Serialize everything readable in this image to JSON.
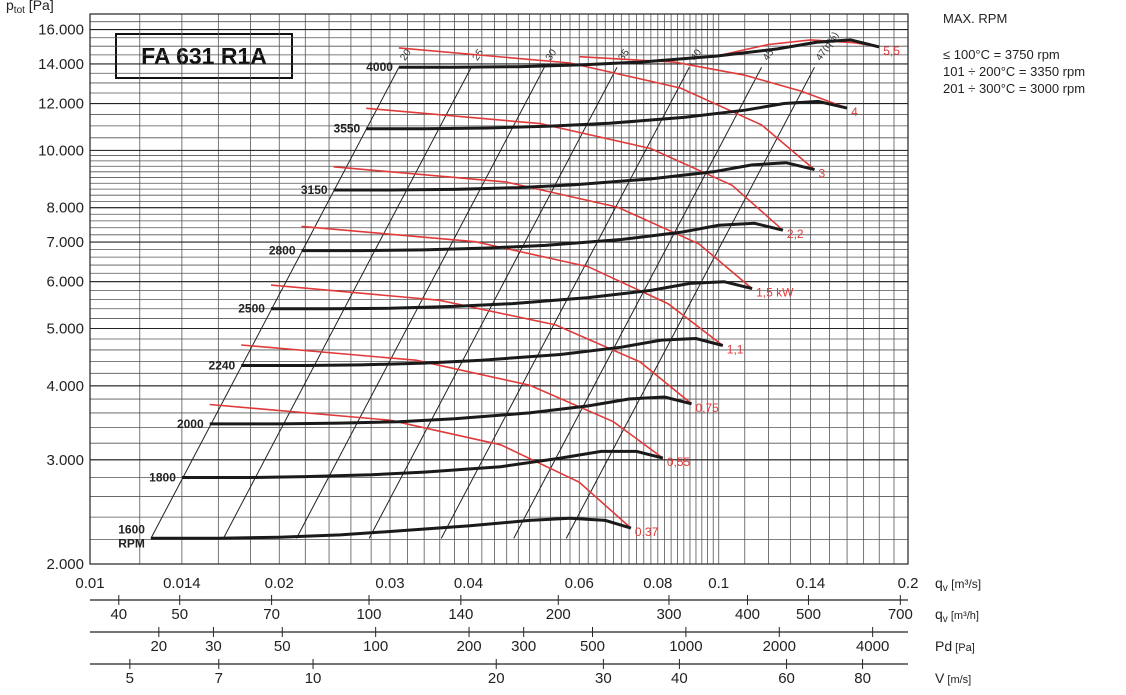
{
  "chart_data": {
    "type": "line",
    "title": "FA 631 R1A",
    "ylabel": "p",
    "ylabel_sub": "tot",
    "ylabel_unit": "[Pa]",
    "yscale": "log",
    "xscale": "log",
    "xlim": [
      0.01,
      0.2
    ],
    "ylim": [
      2000,
      17000
    ],
    "y_ticks": [
      2000,
      3000,
      4000,
      5000,
      6000,
      7000,
      8000,
      10000,
      12000,
      14000,
      16000
    ],
    "y_tick_labels": [
      "2.000",
      "3.000",
      "4.000",
      "5.000",
      "6.000",
      "7.000",
      "8.000",
      "10.000",
      "12.000",
      "14.000",
      "16.000"
    ],
    "x_ticks": [
      0.01,
      0.014,
      0.02,
      0.03,
      0.04,
      0.06,
      0.08,
      0.1,
      0.14,
      0.2
    ],
    "x_tick_labels": [
      "0.01",
      "0.014",
      "0.02",
      "0.03",
      "0.04",
      "0.06",
      "0.08",
      "0.1",
      "0.14",
      "0.2"
    ],
    "grid": true,
    "series": [
      {
        "name": "1600 RPM",
        "label": "1600",
        "label2": "RPM",
        "x": [
          0.0125,
          0.016,
          0.02,
          0.025,
          0.03,
          0.04,
          0.05,
          0.058,
          0.066,
          0.0725
        ],
        "y": [
          2210,
          2210,
          2220,
          2240,
          2270,
          2320,
          2370,
          2390,
          2370,
          2300
        ]
      },
      {
        "name": "1800",
        "label": "1800",
        "x": [
          0.014,
          0.018,
          0.022,
          0.028,
          0.034,
          0.045,
          0.056,
          0.065,
          0.074,
          0.0815
        ],
        "y": [
          2800,
          2800,
          2810,
          2830,
          2860,
          2920,
          3020,
          3100,
          3100,
          3020
        ]
      },
      {
        "name": "2000",
        "label": "2000",
        "x": [
          0.0155,
          0.02,
          0.025,
          0.031,
          0.038,
          0.05,
          0.062,
          0.072,
          0.082,
          0.0905
        ],
        "y": [
          3450,
          3450,
          3460,
          3480,
          3520,
          3600,
          3700,
          3800,
          3830,
          3730
        ]
      },
      {
        "name": "2240",
        "label": "2240",
        "x": [
          0.0174,
          0.022,
          0.027,
          0.034,
          0.042,
          0.056,
          0.07,
          0.081,
          0.092,
          0.1015
        ],
        "y": [
          4330,
          4330,
          4340,
          4370,
          4420,
          4520,
          4650,
          4780,
          4810,
          4680
        ]
      },
      {
        "name": "2500",
        "label": "2500",
        "x": [
          0.0194,
          0.024,
          0.03,
          0.038,
          0.047,
          0.062,
          0.078,
          0.09,
          0.102,
          0.113
        ],
        "y": [
          5400,
          5400,
          5410,
          5450,
          5510,
          5640,
          5800,
          5960,
          6000,
          5840
        ]
      },
      {
        "name": "2800",
        "label": "2800",
        "x": [
          0.0217,
          0.027,
          0.034,
          0.043,
          0.053,
          0.07,
          0.087,
          0.1,
          0.114,
          0.1265
        ],
        "y": [
          6770,
          6770,
          6790,
          6840,
          6910,
          7070,
          7270,
          7470,
          7530,
          7330
        ]
      },
      {
        "name": "3150",
        "label": "3150",
        "x": [
          0.0244,
          0.03,
          0.038,
          0.048,
          0.059,
          0.078,
          0.098,
          0.113,
          0.128,
          0.142
        ],
        "y": [
          8570,
          8570,
          8590,
          8650,
          8750,
          8950,
          9200,
          9450,
          9530,
          9280
        ]
      },
      {
        "name": "3550",
        "label": "3550",
        "x": [
          0.0275,
          0.034,
          0.043,
          0.054,
          0.067,
          0.088,
          0.11,
          0.127,
          0.144,
          0.16
        ],
        "y": [
          10880,
          10880,
          10910,
          10990,
          11110,
          11370,
          11690,
          12000,
          12100,
          11790
        ]
      },
      {
        "name": "4000",
        "label": "4000",
        "x": [
          0.031,
          0.038,
          0.048,
          0.061,
          0.075,
          0.099,
          0.124,
          0.143,
          0.162,
          0.18
        ],
        "y": [
          13820,
          13820,
          13850,
          13950,
          14100,
          14430,
          14840,
          15230,
          15370,
          14960
        ]
      }
    ],
    "efficiency_lines": [
      {
        "label": "20",
        "x": [
          0.0125,
          0.031
        ],
        "y": [
          2210,
          13820
        ]
      },
      {
        "label": "25",
        "x": [
          0.0163,
          0.0404
        ],
        "y": [
          2210,
          13820
        ]
      },
      {
        "label": "30",
        "x": [
          0.0213,
          0.0528
        ],
        "y": [
          2210,
          13820
        ]
      },
      {
        "label": "35",
        "x": [
          0.0278,
          0.0689
        ],
        "y": [
          2210,
          13820
        ]
      },
      {
        "label": "40",
        "x": [
          0.0362,
          0.0898
        ],
        "y": [
          2210,
          13820
        ]
      },
      {
        "label": "45",
        "x": [
          0.0472,
          0.117
        ],
        "y": [
          2210,
          13820
        ]
      },
      {
        "label": "47(η%)",
        "x": [
          0.0572,
          0.142
        ],
        "y": [
          2210,
          13820
        ]
      }
    ],
    "power_lines": [
      {
        "label": "0,37",
        "x": [
          0.0155,
          0.03,
          0.045,
          0.06,
          0.0725
        ],
        "y": [
          3720,
          3500,
          3180,
          2750,
          2300
        ]
      },
      {
        "label": "0,55",
        "x": [
          0.0174,
          0.033,
          0.05,
          0.068,
          0.0815
        ],
        "y": [
          4690,
          4420,
          4010,
          3480,
          3020
        ]
      },
      {
        "label": "0,75",
        "x": [
          0.0194,
          0.036,
          0.055,
          0.075,
          0.0905
        ],
        "y": [
          5920,
          5580,
          5070,
          4390,
          3730
        ]
      },
      {
        "label": "1,1",
        "x": [
          0.0217,
          0.041,
          0.062,
          0.083,
          0.1015
        ],
        "y": [
          7440,
          7010,
          6360,
          5510,
          4680
        ]
      },
      {
        "label": "1,5 kW",
        "x": [
          0.0244,
          0.046,
          0.069,
          0.093,
          0.113
        ],
        "y": [
          9380,
          8840,
          8020,
          6950,
          5840
        ]
      },
      {
        "label": "2,2",
        "x": [
          0.0275,
          0.052,
          0.078,
          0.105,
          0.1265
        ],
        "y": [
          11780,
          11100,
          10070,
          8730,
          7330
        ]
      },
      {
        "label": "3",
        "x": [
          0.031,
          0.058,
          0.087,
          0.117,
          0.142
        ],
        "y": [
          14900,
          14050,
          12740,
          11040,
          9280
        ]
      },
      {
        "label": "4",
        "x": [
          0.06,
          0.085,
          0.11,
          0.135,
          0.16
        ],
        "y": [
          14400,
          14100,
          13400,
          12600,
          11790
        ]
      },
      {
        "label": "5,5",
        "x": [
          0.099,
          0.12,
          0.14,
          0.165,
          0.18
        ],
        "y": [
          14430,
          15100,
          15370,
          15200,
          14960
        ]
      }
    ],
    "secondary_axes": [
      {
        "label": "q",
        "sub": "v",
        "unit": "[m³/h]",
        "ticks": [
          40,
          50,
          70,
          100,
          140,
          200,
          300,
          400,
          500,
          700
        ],
        "tick_labels": [
          "40",
          "50",
          "70",
          "100",
          "140",
          "200",
          "300",
          "400",
          "500",
          "700"
        ],
        "scale_to_m3s": 0.0002778
      },
      {
        "label": "Pd",
        "sub": "",
        "unit": "[Pa]",
        "ticks": [
          20,
          30,
          50,
          100,
          200,
          300,
          500,
          1000,
          2000,
          4000
        ],
        "tick_labels": [
          "20",
          "30",
          "50",
          "100",
          "200",
          "300",
          "500",
          "1000",
          "2000",
          "4000"
        ]
      },
      {
        "label": "V",
        "sub": "",
        "unit": "[m/s]",
        "ticks": [
          5,
          7,
          10,
          20,
          30,
          40,
          60,
          80
        ],
        "tick_labels": [
          "5",
          "7",
          "10",
          "20",
          "30",
          "40",
          "60",
          "80"
        ]
      }
    ],
    "xlabel": "q",
    "xlabel_sub": "v",
    "xlabel_unit": "[m³/s]"
  },
  "notes": {
    "heading": "MAX. RPM",
    "lines": [
      "≤ 100°C = 3750 rpm",
      "101 ÷ 200°C = 3350 rpm",
      "201 ÷ 300°C = 3000 rpm"
    ]
  },
  "colors": {
    "curve": "#1a1a1a",
    "power": "#e03a3a",
    "grid": "#555555"
  }
}
